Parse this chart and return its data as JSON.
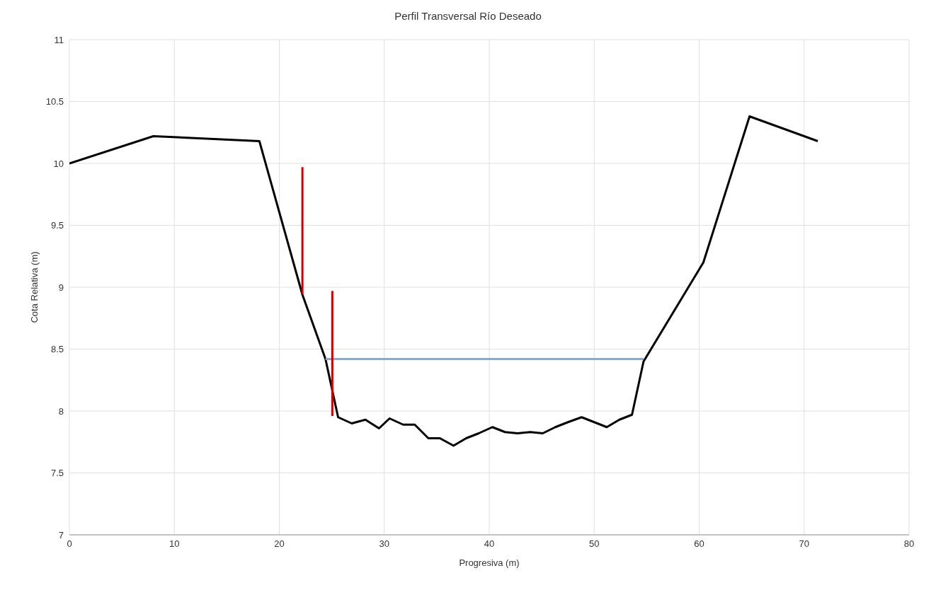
{
  "chart_data": {
    "type": "line",
    "title": "Perfil Transversal Río Deseado",
    "xlabel": "Progresiva (m)",
    "ylabel": "Cota Relativa (m)",
    "xlim": [
      0,
      80
    ],
    "xticks": [
      0,
      10,
      20,
      30,
      40,
      50,
      60,
      70,
      80
    ],
    "ylim": [
      7,
      11
    ],
    "yticks": [
      7,
      7.5,
      8,
      8.5,
      9,
      9.5,
      10,
      10.5,
      11
    ],
    "grid": true,
    "marker": "none",
    "line_style": "solid",
    "series": [
      {
        "color": "#000000",
        "x": [
          0,
          8,
          18.1,
          22.2,
          24.4,
          25.6,
          26.9,
          28.2,
          29.5,
          30.5,
          31.8,
          32.9,
          34.2,
          35.3,
          36.6,
          37.8,
          39,
          40.3,
          41.5,
          42.7,
          43.9,
          45.1,
          46.3,
          47.5,
          48.8,
          50,
          51.2,
          52.4,
          53.6,
          54.7,
          60.4,
          64.8,
          71.3
        ],
        "values": [
          10,
          10.22,
          10.18,
          8.94,
          8.42,
          7.95,
          7.9,
          7.93,
          7.86,
          7.94,
          7.89,
          7.89,
          7.78,
          7.78,
          7.72,
          7.78,
          7.82,
          7.87,
          7.83,
          7.82,
          7.83,
          7.82,
          7.87,
          7.91,
          7.95,
          7.91,
          7.87,
          7.93,
          7.97,
          8.4,
          9.2,
          10.38,
          10.18
        ]
      },
      {
        "color": "#8fa9c0",
        "x": [
          24.4,
          54.7
        ],
        "values": [
          8.42,
          8.42
        ]
      },
      {
        "color": "#d00000",
        "x": [
          22.2,
          22.2
        ],
        "values": [
          8.94,
          9.97
        ]
      },
      {
        "color": "#d00000",
        "x": [
          25.05,
          25.05
        ],
        "values": [
          7.96,
          8.97
        ]
      }
    ]
  }
}
